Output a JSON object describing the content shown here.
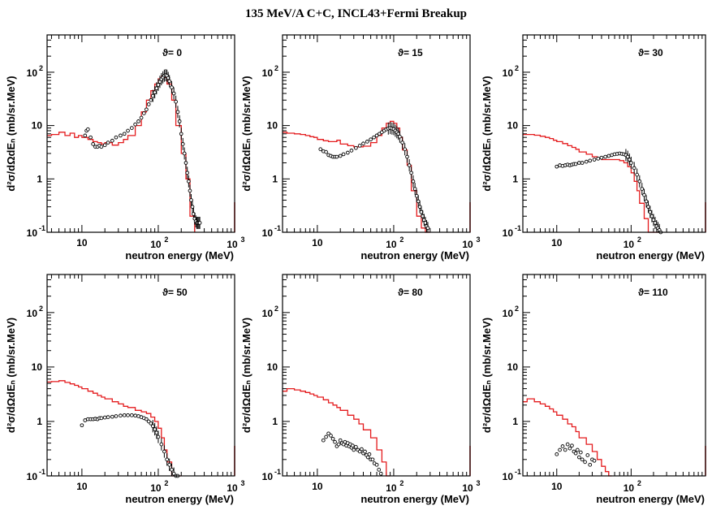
{
  "figure": {
    "title": "135 MeV/A C+C, INCL43+Fermi Breakup"
  },
  "colors": {
    "model": "#e41a1c",
    "data": "#000000"
  },
  "chart_data": [
    {
      "type": "line",
      "angle_label": "ϑ= 0",
      "xlabel": "neutron energy (MeV)",
      "ylabel": "d²σ/dΩdEₙ (mb/sr.MeV)",
      "xscale": "log",
      "yscale": "log",
      "xlim": [
        3.5,
        1000
      ],
      "ylim": [
        0.1,
        500
      ],
      "series": [
        {
          "kind": "histogram",
          "x": [
            3.5,
            4,
            5,
            6,
            7,
            8,
            9,
            10,
            12,
            14,
            16,
            18,
            20,
            25,
            30,
            35,
            40,
            50,
            60,
            70,
            80,
            90,
            100,
            110,
            120,
            130,
            150,
            170,
            200,
            230,
            260,
            300
          ],
          "y": [
            6.5,
            6.8,
            7.5,
            6.5,
            7.2,
            6.0,
            6.5,
            6.0,
            5.5,
            5.0,
            4.8,
            4.5,
            4.8,
            4.3,
            4.8,
            5.5,
            6.5,
            10,
            18,
            30,
            45,
            60,
            75,
            85,
            80,
            60,
            30,
            10,
            3,
            1,
            0.2
          ]
        },
        {
          "kind": "points",
          "x": [
            11,
            11.5,
            12,
            13,
            14,
            15,
            16,
            17,
            18,
            20,
            22,
            25,
            28,
            32,
            36,
            40,
            45,
            50,
            55,
            60,
            65,
            70,
            75,
            80,
            85,
            90,
            95,
            100,
            105,
            110,
            115,
            120,
            125,
            130,
            135,
            140,
            150,
            160,
            170,
            180,
            190,
            200,
            210,
            220,
            230,
            240,
            250,
            260,
            270,
            280,
            290,
            300,
            310,
            320,
            330,
            340,
            350
          ],
          "y": [
            6.5,
            8,
            8.5,
            6,
            4.5,
            4,
            4,
            4.2,
            4,
            4.3,
            4.8,
            5.2,
            6,
            6.5,
            7,
            8,
            9,
            10.5,
            12,
            14,
            17,
            20,
            25,
            30,
            36,
            42,
            50,
            58,
            66,
            74,
            80,
            86,
            88,
            86,
            78,
            68,
            52,
            40,
            28,
            18,
            12,
            7,
            4.5,
            3,
            2,
            1.3,
            0.9,
            0.6,
            0.4,
            0.3,
            0.22,
            0.18,
            0.16,
            0.15,
            0.15,
            0.15,
            0.15
          ]
        }
      ]
    },
    {
      "type": "line",
      "angle_label": "ϑ= 15",
      "xlabel": "neutron energy (MeV)",
      "ylabel": "d²σ/dΩdEₙ (mb/sr.MeV)",
      "xscale": "log",
      "yscale": "log",
      "xlim": [
        3.5,
        1000
      ],
      "ylim": [
        0.1,
        500
      ],
      "series": [
        {
          "kind": "histogram",
          "x": [
            3.5,
            4,
            5,
            6,
            7,
            8,
            9,
            10,
            12,
            14,
            16,
            18,
            20,
            25,
            30,
            35,
            40,
            50,
            60,
            70,
            80,
            90,
            100,
            110,
            120,
            130,
            150,
            170,
            200,
            230,
            260,
            300
          ],
          "y": [
            7.5,
            7.2,
            7,
            6.8,
            6.5,
            6.2,
            6.0,
            5.5,
            5.2,
            5.0,
            5.0,
            5.3,
            4.5,
            4.2,
            4.0,
            4.0,
            4.1,
            4.8,
            6.5,
            9,
            11,
            12,
            11,
            9,
            6,
            3.5,
            1.8,
            0.6,
            0.2,
            0.12,
            0.1
          ]
        },
        {
          "kind": "points",
          "x": [
            11,
            12,
            13,
            14,
            15,
            16,
            17,
            18,
            20,
            22,
            25,
            28,
            32,
            36,
            40,
            45,
            50,
            55,
            60,
            65,
            70,
            75,
            80,
            85,
            90,
            95,
            100,
            105,
            110,
            115,
            120,
            130,
            140,
            150,
            160,
            170,
            180,
            190,
            200,
            210,
            220,
            230,
            240,
            250,
            260,
            270,
            280
          ],
          "y": [
            3.6,
            3.3,
            3.2,
            2.8,
            2.7,
            2.6,
            2.6,
            2.6,
            2.7,
            2.9,
            3.1,
            3.4,
            3.8,
            4.2,
            4.6,
            5.0,
            5.5,
            6.0,
            6.5,
            7.0,
            7.5,
            8.0,
            8.5,
            8.8,
            9.0,
            8.8,
            8.6,
            8.0,
            7.5,
            7.0,
            6.2,
            4.8,
            3.6,
            2.6,
            1.8,
            1.3,
            0.9,
            0.65,
            0.48,
            0.38,
            0.3,
            0.24,
            0.2,
            0.17,
            0.15,
            0.13,
            0.12
          ]
        }
      ]
    },
    {
      "type": "line",
      "angle_label": "ϑ= 30",
      "xlabel": "neutron energy (MeV)",
      "ylabel": "d²σ/dΩdEₙ (mb/sr.MeV)",
      "xscale": "log",
      "yscale": "log",
      "xlim": [
        3.5,
        1000
      ],
      "ylim": [
        0.1,
        500
      ],
      "series": [
        {
          "kind": "histogram",
          "x": [
            3.5,
            4,
            5,
            6,
            7,
            8,
            9,
            10,
            12,
            14,
            16,
            18,
            20,
            25,
            30,
            35,
            40,
            50,
            60,
            70,
            80,
            90,
            100,
            110,
            120,
            130,
            150,
            170,
            200,
            230,
            260
          ],
          "y": [
            6.8,
            6.8,
            6.6,
            6.3,
            6.0,
            5.7,
            5.3,
            5.0,
            4.6,
            4.2,
            3.9,
            3.6,
            3.2,
            2.9,
            2.6,
            2.4,
            2.3,
            2.3,
            2.3,
            2.2,
            2.0,
            1.7,
            1.3,
            0.9,
            0.6,
            0.35,
            0.18,
            0.1,
            0.1,
            0.1
          ]
        },
        {
          "kind": "points",
          "x": [
            10,
            11,
            12,
            13,
            14,
            15,
            16,
            17,
            18,
            20,
            22,
            25,
            28,
            32,
            36,
            40,
            45,
            50,
            55,
            60,
            65,
            70,
            75,
            80,
            85,
            90,
            95,
            100,
            110,
            120,
            130,
            140,
            150,
            160,
            170,
            180,
            190,
            200,
            210,
            220,
            230,
            240,
            250
          ],
          "y": [
            1.7,
            1.8,
            1.75,
            1.8,
            1.85,
            1.8,
            1.85,
            1.9,
            1.9,
            2.0,
            2.0,
            2.1,
            2.2,
            2.3,
            2.4,
            2.5,
            2.6,
            2.7,
            2.8,
            2.9,
            2.95,
            3.0,
            2.95,
            2.9,
            2.8,
            2.6,
            2.3,
            2.0,
            1.6,
            1.2,
            0.9,
            0.65,
            0.5,
            0.38,
            0.3,
            0.24,
            0.2,
            0.17,
            0.15,
            0.13,
            0.12,
            0.11,
            0.1
          ]
        }
      ]
    },
    {
      "type": "line",
      "angle_label": "ϑ= 50",
      "xlabel": "neutron energy (MeV)",
      "ylabel": "d²σ/dΩdEₙ (mb/sr.MeV)",
      "xscale": "log",
      "yscale": "log",
      "xlim": [
        3.5,
        1000
      ],
      "ylim": [
        0.1,
        500
      ],
      "series": [
        {
          "kind": "histogram",
          "x": [
            3.5,
            4,
            5,
            6,
            7,
            8,
            9,
            10,
            12,
            14,
            16,
            18,
            20,
            25,
            30,
            35,
            40,
            50,
            60,
            70,
            80,
            90,
            100,
            110,
            120,
            130,
            150,
            170,
            200
          ],
          "y": [
            5.3,
            5.4,
            5.6,
            5.2,
            4.9,
            4.6,
            4.3,
            4.0,
            3.6,
            3.3,
            3.0,
            2.8,
            2.6,
            2.3,
            2.1,
            1.9,
            1.8,
            1.6,
            1.5,
            1.4,
            1.2,
            1.0,
            0.75,
            0.5,
            0.3,
            0.18,
            0.1,
            0.1
          ]
        },
        {
          "kind": "points",
          "x": [
            10,
            11,
            12,
            13,
            14,
            15,
            16,
            17,
            18,
            20,
            22,
            25,
            28,
            32,
            36,
            40,
            45,
            50,
            55,
            60,
            65,
            70,
            75,
            80,
            85,
            90,
            95,
            100,
            110,
            120,
            130,
            140,
            150,
            160,
            170,
            180
          ],
          "y": [
            0.85,
            1.05,
            1.1,
            1.1,
            1.1,
            1.12,
            1.1,
            1.15,
            1.15,
            1.18,
            1.2,
            1.22,
            1.25,
            1.28,
            1.3,
            1.3,
            1.3,
            1.28,
            1.25,
            1.2,
            1.15,
            1.1,
            1.0,
            0.92,
            0.82,
            0.72,
            0.62,
            0.52,
            0.38,
            0.28,
            0.2,
            0.16,
            0.13,
            0.11,
            0.1,
            0.1
          ]
        }
      ]
    },
    {
      "type": "line",
      "angle_label": "ϑ= 80",
      "xlabel": "neutron energy (MeV)",
      "ylabel": "d²σ/dΩdEₙ (mb/sr.MeV)",
      "xscale": "log",
      "yscale": "log",
      "xlim": [
        3.5,
        1000
      ],
      "ylim": [
        0.1,
        500
      ],
      "series": [
        {
          "kind": "histogram",
          "x": [
            3.5,
            4,
            5,
            6,
            7,
            8,
            9,
            10,
            12,
            14,
            16,
            18,
            20,
            25,
            30,
            35,
            40,
            50,
            60,
            70,
            80,
            90
          ],
          "y": [
            3.6,
            4.0,
            3.8,
            3.6,
            3.4,
            3.2,
            3.0,
            2.8,
            2.5,
            2.2,
            2.0,
            1.8,
            1.6,
            1.3,
            1.1,
            0.9,
            0.7,
            0.5,
            0.3,
            0.18,
            0.1
          ]
        },
        {
          "kind": "points",
          "x": [
            12,
            13,
            14,
            15,
            16,
            17,
            18,
            19,
            20,
            21,
            22,
            23,
            24,
            25,
            26,
            27,
            28,
            29,
            30,
            32,
            34,
            36,
            38,
            40,
            42,
            44,
            46,
            48,
            50,
            53,
            56,
            60,
            64,
            68
          ],
          "y": [
            0.45,
            0.52,
            0.6,
            0.55,
            0.48,
            0.42,
            0.35,
            0.38,
            0.45,
            0.4,
            0.38,
            0.42,
            0.36,
            0.4,
            0.35,
            0.38,
            0.33,
            0.36,
            0.3,
            0.34,
            0.3,
            0.28,
            0.31,
            0.26,
            0.28,
            0.24,
            0.22,
            0.25,
            0.2,
            0.2,
            0.17,
            0.16,
            0.13,
            0.11
          ]
        }
      ]
    },
    {
      "type": "line",
      "angle_label": "ϑ= 110",
      "xlabel": "neutron energy (MeV)",
      "ylabel": "d²σ/dΩdEₙ (mb/sr.MeV)",
      "xscale": "log",
      "yscale": "log",
      "xlim": [
        3.5,
        1000
      ],
      "ylim": [
        0.1,
        500
      ],
      "series": [
        {
          "kind": "histogram",
          "x": [
            3.5,
            4,
            5,
            6,
            7,
            8,
            9,
            10,
            12,
            14,
            16,
            18,
            20,
            25,
            30,
            35,
            40,
            45,
            50,
            55
          ],
          "y": [
            2.3,
            2.6,
            2.3,
            2.1,
            1.9,
            1.7,
            1.5,
            1.3,
            1.1,
            0.9,
            0.8,
            0.65,
            0.5,
            0.38,
            0.28,
            0.2,
            0.15,
            0.12,
            0.1
          ]
        },
        {
          "kind": "points",
          "x": [
            10,
            11,
            12,
            13,
            14,
            15,
            16,
            17,
            18,
            19,
            20,
            21,
            22,
            24,
            26,
            28,
            30,
            32
          ],
          "y": [
            0.25,
            0.3,
            0.35,
            0.3,
            0.38,
            0.32,
            0.36,
            0.28,
            0.26,
            0.3,
            0.22,
            0.27,
            0.2,
            0.18,
            0.24,
            0.16,
            0.2,
            0.19
          ]
        }
      ]
    }
  ]
}
